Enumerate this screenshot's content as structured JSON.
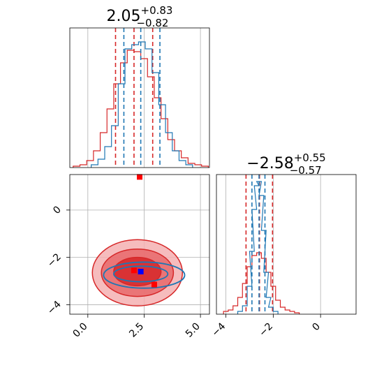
{
  "colors": {
    "red": "#d62728",
    "blue": "#1f77b4",
    "marker_blue": "#0000ff",
    "marker_red": "#ff0000",
    "grid": "#b0b0b0"
  },
  "chart_data": [
    {
      "type": "histogram",
      "panel": "top-left",
      "title": {
        "value": "2.05",
        "plus": "+0.83",
        "minus": "−0.82"
      },
      "xlim": [
        -0.8,
        5.4
      ],
      "xticks": [
        0.0,
        2.5,
        5.0
      ],
      "grid": true,
      "series": [
        {
          "color": "red",
          "vlines": [
            1.23,
            2.05,
            2.88
          ],
          "x": [
            -0.5,
            -0.2,
            0.1,
            0.4,
            0.7,
            1.0,
            1.3,
            1.6,
            1.9,
            2.2,
            2.5,
            2.8,
            3.1,
            3.4,
            3.7,
            4.0,
            4.3,
            4.6,
            4.9,
            5.2
          ],
          "y": [
            0.01,
            0.02,
            0.05,
            0.12,
            0.25,
            0.42,
            0.6,
            0.75,
            0.84,
            0.83,
            0.78,
            0.65,
            0.5,
            0.35,
            0.2,
            0.12,
            0.07,
            0.03,
            0.02,
            0.01
          ]
        },
        {
          "color": "blue",
          "vlines": [
            1.6,
            2.35,
            3.2
          ],
          "x": [
            0.3,
            0.6,
            0.9,
            1.2,
            1.5,
            1.8,
            2.1,
            2.4,
            2.7,
            3.0,
            3.3,
            3.6,
            3.9,
            4.2,
            4.5
          ],
          "y": [
            0.02,
            0.06,
            0.15,
            0.3,
            0.6,
            0.85,
            0.88,
            0.9,
            0.85,
            0.68,
            0.45,
            0.25,
            0.12,
            0.05,
            0.02
          ]
        }
      ]
    },
    {
      "type": "histogram",
      "panel": "bottom-right",
      "title": {
        "value": "−2.58",
        "plus": "+0.55",
        "minus": "−0.57"
      },
      "xlim": [
        -4.4,
        1.5
      ],
      "xticks": [
        -4,
        -2,
        0
      ],
      "grid": true,
      "series": [
        {
          "color": "red",
          "vlines": [
            -3.15,
            -2.58,
            -2.03
          ],
          "x": [
            -4.0,
            -3.8,
            -3.6,
            -3.4,
            -3.2,
            -3.0,
            -2.8,
            -2.6,
            -2.4,
            -2.2,
            -2.0,
            -1.8,
            -1.6,
            -1.4,
            -1.2,
            -1.0
          ],
          "y": [
            0.02,
            0.03,
            0.06,
            0.12,
            0.22,
            0.34,
            0.42,
            0.44,
            0.4,
            0.3,
            0.2,
            0.1,
            0.05,
            0.03,
            0.02,
            0.01
          ]
        },
        {
          "color": "blue",
          "vlines": [
            -2.9,
            -2.6,
            -2.35
          ],
          "x": [
            -3.4,
            -3.2,
            -3.0,
            -2.9,
            -2.8,
            -2.7,
            -2.6,
            -2.5,
            -2.4,
            -2.3,
            -2.2,
            -2.1,
            -1.9
          ],
          "y": [
            0.02,
            0.06,
            0.2,
            0.45,
            0.75,
            0.92,
            0.95,
            0.85,
            0.6,
            0.3,
            0.12,
            0.05,
            0.02
          ]
        }
      ]
    },
    {
      "type": "contour",
      "panel": "bottom-left",
      "xlim": [
        -0.8,
        5.4
      ],
      "ylim": [
        -4.4,
        1.5
      ],
      "xticks": [
        0.0,
        2.5,
        5.0
      ],
      "yticks": [
        0,
        -2,
        -4
      ],
      "xtick_labels": [
        "0.0",
        "2.5",
        "5.0"
      ],
      "ytick_labels": [
        "0",
        "−2",
        "−4"
      ],
      "grid": true,
      "red_levels": [
        {
          "cx": 2.2,
          "cy": -2.65,
          "rx": 2.0,
          "ry": 1.4
        },
        {
          "cx": 2.2,
          "cy": -2.65,
          "rx": 1.6,
          "ry": 1.0
        },
        {
          "cx": 2.2,
          "cy": -2.6,
          "rx": 1.05,
          "ry": 0.6
        }
      ],
      "blue_levels": [
        {
          "cx": 2.5,
          "cy": -2.75,
          "rx": 1.8,
          "ry": 0.55
        },
        {
          "cx": 2.35,
          "cy": -2.7,
          "rx": 1.2,
          "ry": 0.33
        }
      ],
      "markers": [
        {
          "x": 2.05,
          "y": -2.55,
          "color": "marker_red"
        },
        {
          "x": 2.95,
          "y": -3.15,
          "color": "marker_red"
        },
        {
          "x": 2.35,
          "y": -2.6,
          "color": "marker_blue"
        },
        {
          "x": 2.3,
          "y": 1.4,
          "color": "marker_red"
        }
      ]
    }
  ]
}
